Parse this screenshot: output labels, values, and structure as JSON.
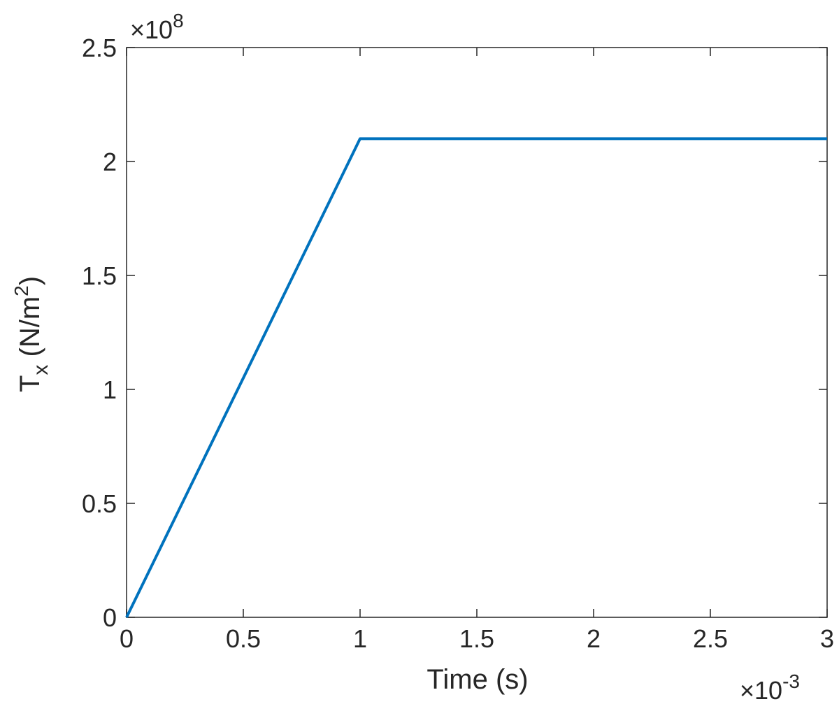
{
  "chart_data": {
    "type": "line",
    "title": "",
    "xlabel": "Time (s)",
    "ylabel": {
      "main": "T",
      "subscript": "x",
      "unit_prefix": " (N/m",
      "unit_superscript": "2",
      "unit_suffix": ")"
    },
    "x_multiplier": {
      "base": "×10",
      "exponent": "-3"
    },
    "y_multiplier": {
      "base": "×10",
      "exponent": "8"
    },
    "xlim": [
      0,
      3
    ],
    "ylim": [
      0,
      2.5
    ],
    "x_ticks": [
      0,
      0.5,
      1,
      1.5,
      2,
      2.5,
      3
    ],
    "x_tick_labels": [
      "0",
      "0.5",
      "1",
      "1.5",
      "2",
      "2.5",
      "3"
    ],
    "y_ticks": [
      0,
      0.5,
      1,
      1.5,
      2,
      2.5
    ],
    "y_tick_labels": [
      "0",
      "0.5",
      "1",
      "1.5",
      "2",
      "2.5"
    ],
    "grid": false,
    "series": [
      {
        "color": "#0072BD",
        "x": [
          0,
          1,
          3
        ],
        "y": [
          0,
          2.1,
          2.1
        ]
      }
    ]
  }
}
